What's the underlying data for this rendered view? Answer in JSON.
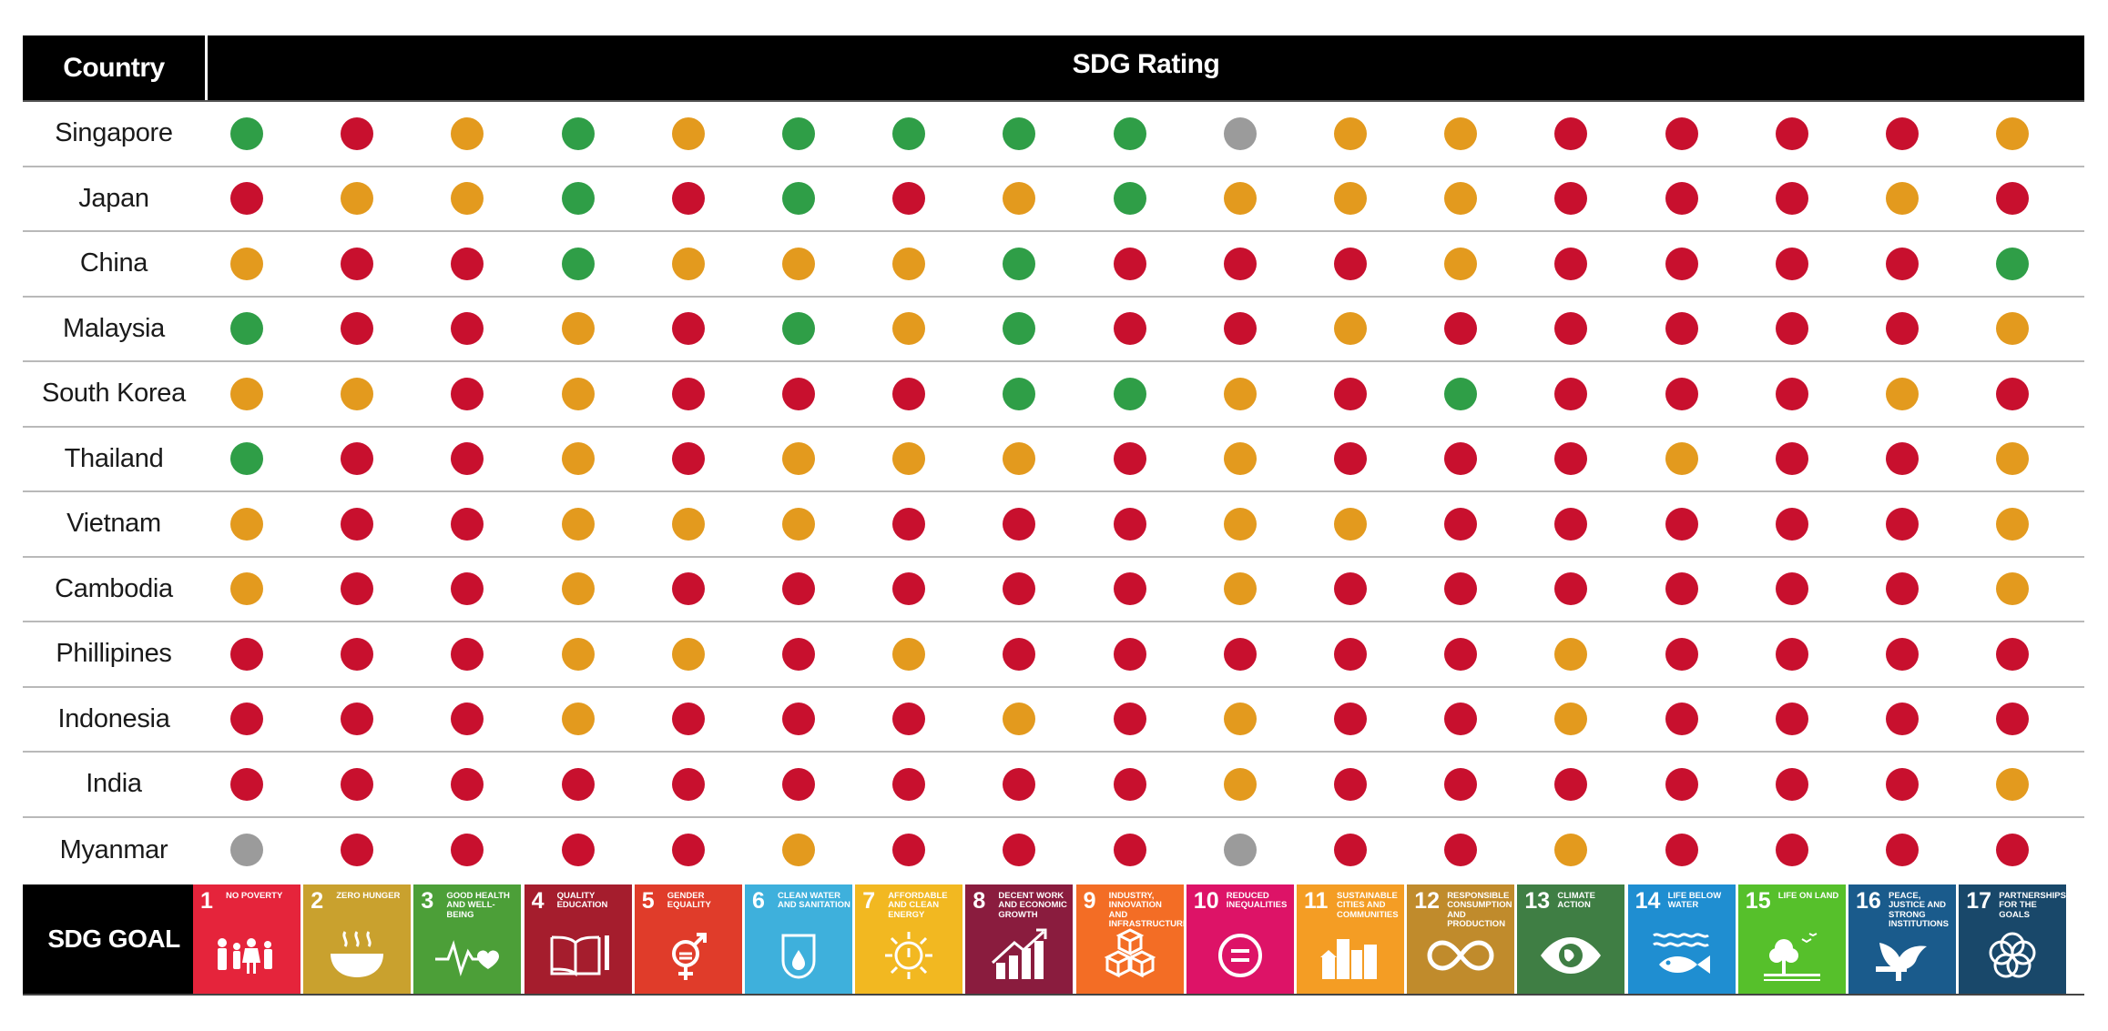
{
  "header": {
    "country": "Country",
    "rating": "SDG Rating"
  },
  "colors": {
    "green": "#2f9e47",
    "orange": "#e39a1e",
    "red": "#c8102e",
    "gray": "#9b9b9b"
  },
  "chart_data": {
    "type": "table",
    "legend": {
      "G": "green",
      "O": "orange",
      "R": "red",
      "N": "gray"
    },
    "countries": [
      {
        "name": "Singapore",
        "ratings": [
          "G",
          "R",
          "O",
          "G",
          "O",
          "G",
          "G",
          "G",
          "G",
          "N",
          "O",
          "O",
          "R",
          "R",
          "R",
          "R",
          "O"
        ]
      },
      {
        "name": "Japan",
        "ratings": [
          "R",
          "O",
          "O",
          "G",
          "R",
          "G",
          "R",
          "O",
          "G",
          "O",
          "O",
          "O",
          "R",
          "R",
          "R",
          "O",
          "R"
        ]
      },
      {
        "name": "China",
        "ratings": [
          "O",
          "R",
          "R",
          "G",
          "O",
          "O",
          "O",
          "G",
          "R",
          "R",
          "R",
          "O",
          "R",
          "R",
          "R",
          "R",
          "G"
        ]
      },
      {
        "name": "Malaysia",
        "ratings": [
          "G",
          "R",
          "R",
          "O",
          "R",
          "G",
          "O",
          "G",
          "R",
          "R",
          "O",
          "R",
          "R",
          "R",
          "R",
          "R",
          "O"
        ]
      },
      {
        "name": "South Korea",
        "ratings": [
          "O",
          "O",
          "R",
          "O",
          "R",
          "R",
          "R",
          "G",
          "G",
          "O",
          "R",
          "G",
          "R",
          "R",
          "R",
          "O",
          "R"
        ]
      },
      {
        "name": "Thailand",
        "ratings": [
          "G",
          "R",
          "R",
          "O",
          "R",
          "O",
          "O",
          "O",
          "R",
          "O",
          "R",
          "R",
          "R",
          "O",
          "R",
          "R",
          "O"
        ]
      },
      {
        "name": "Vietnam",
        "ratings": [
          "O",
          "R",
          "R",
          "O",
          "O",
          "O",
          "R",
          "R",
          "R",
          "O",
          "O",
          "R",
          "R",
          "R",
          "R",
          "R",
          "O"
        ]
      },
      {
        "name": "Cambodia",
        "ratings": [
          "O",
          "R",
          "R",
          "O",
          "R",
          "R",
          "R",
          "R",
          "R",
          "O",
          "R",
          "R",
          "R",
          "R",
          "R",
          "R",
          "O"
        ]
      },
      {
        "name": "Phillipines",
        "ratings": [
          "R",
          "R",
          "R",
          "O",
          "O",
          "R",
          "O",
          "R",
          "R",
          "R",
          "R",
          "R",
          "O",
          "R",
          "R",
          "R",
          "R"
        ]
      },
      {
        "name": "Indonesia",
        "ratings": [
          "R",
          "R",
          "R",
          "O",
          "R",
          "R",
          "R",
          "O",
          "R",
          "O",
          "R",
          "R",
          "O",
          "R",
          "R",
          "R",
          "R"
        ]
      },
      {
        "name": "India",
        "ratings": [
          "R",
          "R",
          "R",
          "R",
          "R",
          "R",
          "R",
          "R",
          "R",
          "O",
          "R",
          "R",
          "R",
          "R",
          "R",
          "R",
          "O"
        ]
      },
      {
        "name": "Myanmar",
        "ratings": [
          "N",
          "R",
          "R",
          "R",
          "R",
          "O",
          "R",
          "R",
          "R",
          "N",
          "R",
          "R",
          "O",
          "R",
          "R",
          "R",
          "R"
        ]
      }
    ]
  },
  "goals_label": "SDG GOAL",
  "goals": [
    {
      "num": "1",
      "text": "No poverty",
      "color": "#e5243b",
      "icon": "people-icon"
    },
    {
      "num": "2",
      "text": "Zero hunger",
      "color": "#c9a12e",
      "icon": "bowl-icon"
    },
    {
      "num": "3",
      "text": "Good health and well-being",
      "color": "#4c9f38",
      "icon": "heartbeat-icon"
    },
    {
      "num": "4",
      "text": "Quality education",
      "color": "#a51d2d",
      "icon": "book-icon"
    },
    {
      "num": "5",
      "text": "Gender equality",
      "color": "#e03c2a",
      "icon": "gender-icon"
    },
    {
      "num": "6",
      "text": "Clean water and sanitation",
      "color": "#3eb0dc",
      "icon": "water-drop-icon"
    },
    {
      "num": "7",
      "text": "Affordable and clean energy",
      "color": "#f2b821",
      "icon": "sun-power-icon"
    },
    {
      "num": "8",
      "text": "Decent work and economic growth",
      "color": "#8a1c3e",
      "icon": "growth-chart-icon"
    },
    {
      "num": "9",
      "text": "Industry, innovation and infrastructure",
      "color": "#f36d25",
      "icon": "cubes-icon"
    },
    {
      "num": "10",
      "text": "Reduced inequalities",
      "color": "#dd1367",
      "icon": "equal-circle-icon"
    },
    {
      "num": "11",
      "text": "Sustainable cities and communities",
      "color": "#f49d24",
      "icon": "city-icon"
    },
    {
      "num": "12",
      "text": "Responsible consumption and production",
      "color": "#c08b2c",
      "icon": "infinity-icon"
    },
    {
      "num": "13",
      "text": "Climate action",
      "color": "#3f7e44",
      "icon": "eye-globe-icon"
    },
    {
      "num": "14",
      "text": "Life below water",
      "color": "#1f8ed1",
      "icon": "fish-icon"
    },
    {
      "num": "15",
      "text": "Life on land",
      "color": "#56c02b",
      "icon": "tree-icon"
    },
    {
      "num": "16",
      "text": "Peace, justice and strong institutions",
      "color": "#1a5b8c",
      "icon": "dove-icon"
    },
    {
      "num": "17",
      "text": "Partnerships for the goals",
      "color": "#19486a",
      "icon": "rings-icon"
    }
  ]
}
